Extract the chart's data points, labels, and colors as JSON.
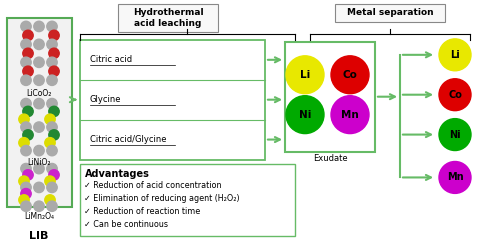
{
  "title_hydro": "Hydrothermal\nacid leaching",
  "title_metal": "Metal separation",
  "lib_label": "LIB",
  "lib_materials": [
    "LiCoO₂",
    "LiNiO₂",
    "LiMn₂O₄"
  ],
  "acids": [
    "Citric acid",
    "Glycine",
    "Citric acid/Glycine"
  ],
  "exudate_label": "Exudate",
  "metals": [
    "Li",
    "Co",
    "Ni",
    "Mn"
  ],
  "metal_colors": [
    "#e8e800",
    "#dd0000",
    "#00aa00",
    "#cc00cc"
  ],
  "advantages_title": "Advantages",
  "advantages": [
    "Reduction of acid concentration",
    "Elimination of reducing agent (H₂O₂)",
    "Reduction of reaction time",
    "Can be continuous"
  ],
  "green": "#66bb66",
  "box_border": "#66bb66",
  "lib_box_color": "#55aa55",
  "bg": "#ffffff",
  "lib_bg": "#e8e8e8",
  "crystal_gray": "#aaaaaa",
  "crystal_red": "#cc2222",
  "crystal_green": "#228833",
  "crystal_magenta": "#cc22cc",
  "crystal_yellow": "#dddd00"
}
